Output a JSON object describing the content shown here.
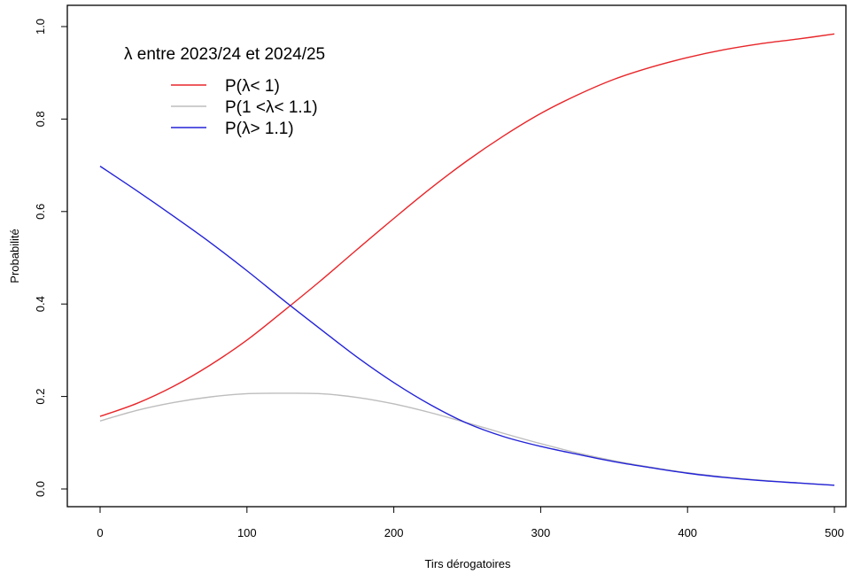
{
  "chart_data": {
    "type": "line",
    "xlabel": "Tirs dérogatoires",
    "ylabel": "Probabilité",
    "xlim": [
      0,
      500
    ],
    "ylim": [
      0,
      1
    ],
    "x_ticks": [
      "0",
      "100",
      "200",
      "300",
      "400",
      "500"
    ],
    "y_ticks": [
      "0.0",
      "0.2",
      "0.4",
      "0.6",
      "0.8",
      "1.0"
    ],
    "grid": false,
    "legend": {
      "title": "λ entre 2023/24 et 2024/25",
      "placement": "top-left"
    },
    "x": [
      0,
      25,
      50,
      75,
      100,
      125,
      150,
      175,
      200,
      225,
      250,
      275,
      300,
      325,
      350,
      375,
      400,
      425,
      450,
      475,
      500
    ],
    "series": [
      {
        "name": "P(λ< 1)",
        "color": "#e8262a",
        "values": [
          0.157,
          0.185,
          0.222,
          0.268,
          0.322,
          0.385,
          0.45,
          0.518,
          0.585,
          0.65,
          0.71,
          0.764,
          0.812,
          0.852,
          0.886,
          0.912,
          0.933,
          0.95,
          0.963,
          0.973,
          0.984
        ]
      },
      {
        "name": "P(1 <λ< 1.1)",
        "color": "#bdbdbd",
        "values": [
          0.147,
          0.17,
          0.187,
          0.199,
          0.206,
          0.207,
          0.206,
          0.198,
          0.184,
          0.165,
          0.143,
          0.12,
          0.098,
          0.078,
          0.061,
          0.047,
          0.035,
          0.026,
          0.019,
          0.013,
          0.008
        ]
      },
      {
        "name": "P(λ> 1.1)",
        "color": "#2323d8",
        "values": [
          0.698,
          0.645,
          0.59,
          0.533,
          0.472,
          0.408,
          0.346,
          0.285,
          0.23,
          0.182,
          0.142,
          0.113,
          0.092,
          0.075,
          0.059,
          0.046,
          0.034,
          0.025,
          0.018,
          0.013,
          0.008
        ]
      }
    ]
  }
}
